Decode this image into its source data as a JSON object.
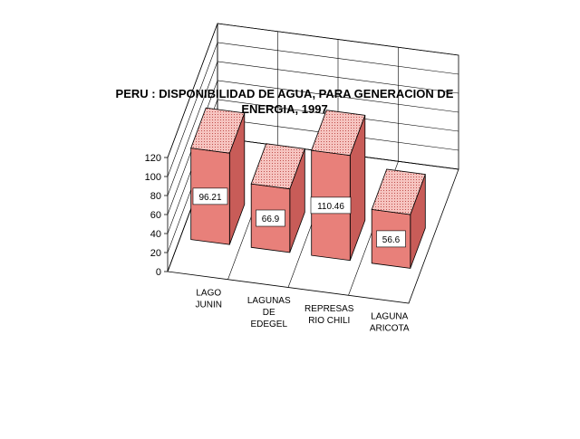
{
  "chart_data": {
    "type": "bar",
    "title": "PERU : DISPONIBILIDAD DE AGUA, PARA GENERACION DE ENERGIA, 1997",
    "title_lines": [
      "PERU : DISPONIBILIDAD DE AGUA, PARA GENERACION DE",
      "ENERGIA, 1997"
    ],
    "categories": [
      "LAGO JUNIN",
      "LAGUNAS DE EDEGEL",
      "REPRESAS RIO CHILI",
      "LAGUNA ARICOTA"
    ],
    "category_lines": [
      [
        "LAGO",
        "JUNIN"
      ],
      [
        "LAGUNAS",
        "DE",
        "EDEGEL"
      ],
      [
        "REPRESAS",
        "RIO CHILI"
      ],
      [
        "LAGUNA",
        "ARICOTA"
      ]
    ],
    "values": [
      96.21,
      66.9,
      110.46,
      56.6
    ],
    "data_labels": [
      "96.21",
      "66.9",
      "110.46",
      "56.6"
    ],
    "yticks": [
      0,
      20,
      40,
      60,
      80,
      100,
      120
    ],
    "ylim": [
      0,
      120
    ],
    "xlabel": "",
    "ylabel": "",
    "grid": true,
    "legend": "none",
    "projection": "3d",
    "colors": {
      "bar_front": "#e8807a",
      "bar_side": "#c85c58",
      "bar_top": "#f6c4c0",
      "bar_edge": "#000000",
      "grid": "#000000"
    }
  }
}
